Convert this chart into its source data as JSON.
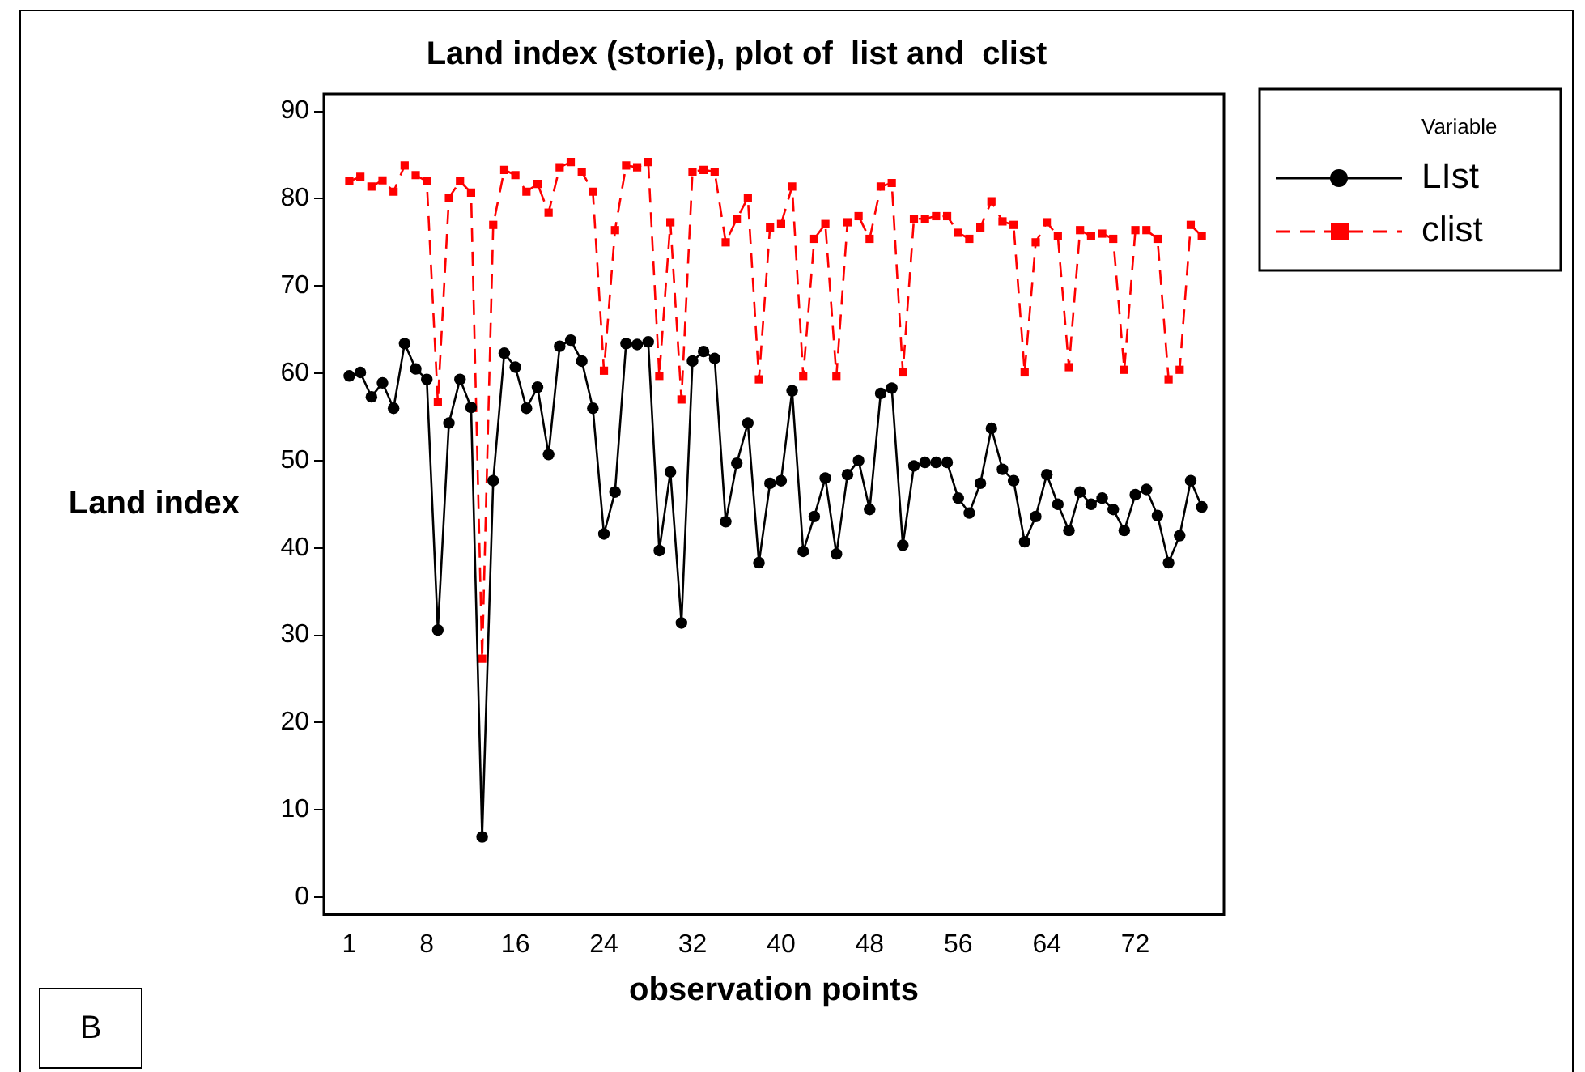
{
  "chart_data": {
    "type": "line",
    "title": "Land index (storie), plot of  list and  clist",
    "xlabel": "observation points",
    "ylabel": "Land index",
    "legend_title": "Variable",
    "legend": "right",
    "grid": false,
    "x": [
      1,
      2,
      3,
      4,
      5,
      6,
      7,
      8,
      9,
      10,
      11,
      12,
      13,
      14,
      15,
      16,
      17,
      18,
      19,
      20,
      21,
      22,
      23,
      24,
      25,
      26,
      27,
      28,
      29,
      30,
      31,
      32,
      33,
      34,
      35,
      36,
      37,
      38,
      39,
      40,
      41,
      42,
      43,
      44,
      45,
      46,
      47,
      48,
      49,
      50,
      51,
      52,
      53,
      54,
      55,
      56,
      57,
      58,
      59,
      60,
      61,
      62,
      63,
      64,
      65,
      66,
      67,
      68,
      69,
      70,
      71,
      72,
      73,
      74,
      75,
      76,
      77,
      78
    ],
    "xlim": [
      -1.3,
      80
    ],
    "xticks": [
      1,
      8,
      16,
      24,
      32,
      40,
      48,
      56,
      64,
      72
    ],
    "ylim": [
      -2,
      92
    ],
    "yticks": [
      0,
      10,
      20,
      30,
      40,
      50,
      60,
      70,
      80,
      90
    ],
    "series": [
      {
        "name": "LIst",
        "color": "#000000",
        "marker": "circle",
        "line_style": "solid",
        "values": [
          59.7,
          60.1,
          57.3,
          58.9,
          56.0,
          63.4,
          60.5,
          59.3,
          30.6,
          54.3,
          59.3,
          56.1,
          6.9,
          47.7,
          62.3,
          60.7,
          56.0,
          58.4,
          50.7,
          63.1,
          63.8,
          61.4,
          56.0,
          41.6,
          46.4,
          63.4,
          63.3,
          63.6,
          39.7,
          48.7,
          31.4,
          61.4,
          62.5,
          61.7,
          43.0,
          49.7,
          54.3,
          38.3,
          47.4,
          47.7,
          58.0,
          39.6,
          43.6,
          48.0,
          39.3,
          48.4,
          50.0,
          44.4,
          57.7,
          58.3,
          40.3,
          49.4,
          49.8,
          49.8,
          49.8,
          45.7,
          44.0,
          47.4,
          53.7,
          49.0,
          47.7,
          40.7,
          43.6,
          48.4,
          45.0,
          42.0,
          46.4,
          45.0,
          45.7,
          44.4,
          42.0,
          46.1,
          46.7,
          43.7,
          38.3,
          41.4,
          47.7,
          44.7
        ]
      },
      {
        "name": "clist",
        "color": "#ff0000",
        "marker": "square",
        "line_style": "dashed",
        "values": [
          82.0,
          82.5,
          81.4,
          82.1,
          80.8,
          83.8,
          82.7,
          82.0,
          56.7,
          80.1,
          82.0,
          80.7,
          27.3,
          77.0,
          83.3,
          82.7,
          80.8,
          81.7,
          78.4,
          83.6,
          84.2,
          83.1,
          80.8,
          60.3,
          76.4,
          83.8,
          83.6,
          84.2,
          59.7,
          77.3,
          57.0,
          83.1,
          83.3,
          83.1,
          75.0,
          77.7,
          80.1,
          59.3,
          76.7,
          77.1,
          81.4,
          59.7,
          75.4,
          77.1,
          59.7,
          77.3,
          78.0,
          75.4,
          81.4,
          81.8,
          60.1,
          77.7,
          77.7,
          78.0,
          78.0,
          76.1,
          75.4,
          76.7,
          79.7,
          77.4,
          77.0,
          60.1,
          75.0,
          77.3,
          75.7,
          60.7,
          76.4,
          75.7,
          76.0,
          75.4,
          60.4,
          76.4,
          76.4,
          75.4,
          59.3,
          60.4,
          77.0,
          75.7
        ]
      }
    ],
    "annotations": [
      "B"
    ]
  }
}
